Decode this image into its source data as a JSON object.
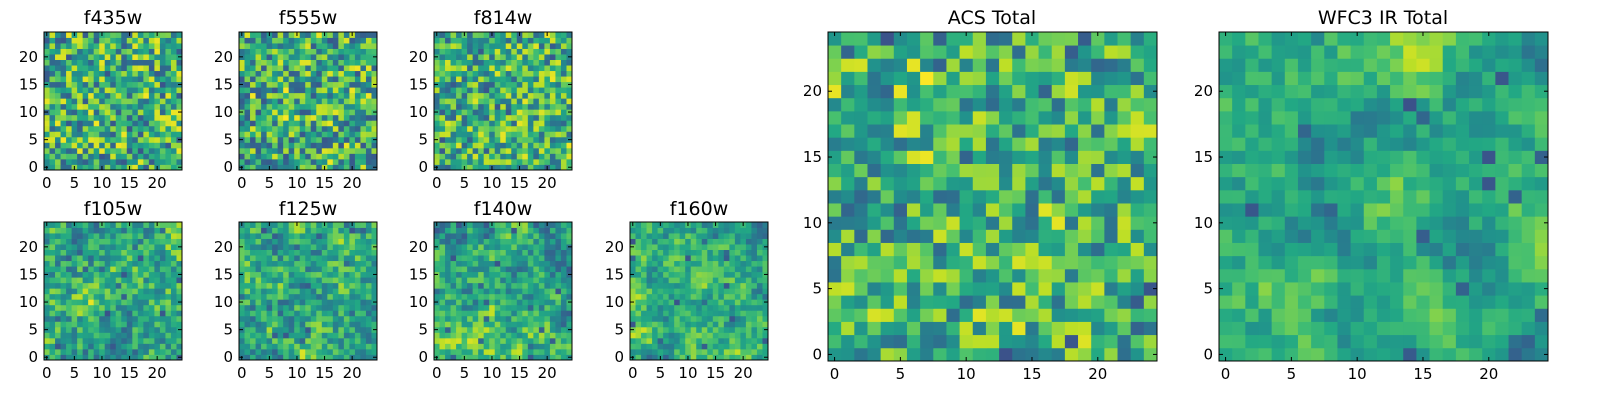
{
  "chart_data": [
    {
      "type": "heatmap",
      "title": "f435w",
      "seed": 11,
      "blob": 0.05,
      "noise": 0.95,
      "xticks": [
        "0",
        "5",
        "10",
        "15",
        "20"
      ],
      "yticks": [
        "0",
        "5",
        "10",
        "15",
        "20"
      ],
      "xlim": [
        0,
        24
      ],
      "ylim": [
        0,
        24
      ],
      "grid": false
    },
    {
      "type": "heatmap",
      "title": "f555w",
      "seed": 23,
      "blob": 0.05,
      "noise": 0.95,
      "xticks": [
        "0",
        "5",
        "10",
        "15",
        "20"
      ],
      "yticks": [
        "0",
        "5",
        "10",
        "15",
        "20"
      ],
      "xlim": [
        0,
        24
      ],
      "ylim": [
        0,
        24
      ],
      "grid": false
    },
    {
      "type": "heatmap",
      "title": "f814w",
      "seed": 37,
      "blob": 0.15,
      "noise": 0.85,
      "xticks": [
        "0",
        "5",
        "10",
        "15",
        "20"
      ],
      "yticks": [
        "0",
        "5",
        "10",
        "15",
        "20"
      ],
      "xlim": [
        0,
        24
      ],
      "ylim": [
        0,
        24
      ],
      "grid": false
    },
    {
      "type": "heatmap",
      "title": "f105w",
      "seed": 41,
      "blob": 0.45,
      "noise": 0.55,
      "xticks": [
        "0",
        "5",
        "10",
        "15",
        "20"
      ],
      "yticks": [
        "0",
        "5",
        "10",
        "15",
        "20"
      ],
      "xlim": [
        0,
        24
      ],
      "ylim": [
        0,
        24
      ],
      "grid": false
    },
    {
      "type": "heatmap",
      "title": "f125w",
      "seed": 53,
      "blob": 0.45,
      "noise": 0.55,
      "xticks": [
        "0",
        "5",
        "10",
        "15",
        "20"
      ],
      "yticks": [
        "0",
        "5",
        "10",
        "15",
        "20"
      ],
      "xlim": [
        0,
        24
      ],
      "ylim": [
        0,
        24
      ],
      "grid": false
    },
    {
      "type": "heatmap",
      "title": "f140w",
      "seed": 67,
      "blob": 0.55,
      "noise": 0.45,
      "xticks": [
        "0",
        "5",
        "10",
        "15",
        "20"
      ],
      "yticks": [
        "0",
        "5",
        "10",
        "15",
        "20"
      ],
      "xlim": [
        0,
        24
      ],
      "ylim": [
        0,
        24
      ],
      "grid": false
    },
    {
      "type": "heatmap",
      "title": "f160w",
      "seed": 79,
      "blob": 0.6,
      "noise": 0.4,
      "xticks": [
        "0",
        "5",
        "10",
        "15",
        "20"
      ],
      "yticks": [
        "0",
        "5",
        "10",
        "15",
        "20"
      ],
      "xlim": [
        0,
        24
      ],
      "ylim": [
        0,
        24
      ],
      "grid": false
    },
    {
      "type": "heatmap",
      "title": "ACS Total",
      "seed": 97,
      "blob": 0.2,
      "noise": 0.8,
      "xticks": [
        "0",
        "5",
        "10",
        "15",
        "20"
      ],
      "yticks": [
        "0",
        "5",
        "10",
        "15",
        "20"
      ],
      "xlim": [
        0,
        24
      ],
      "ylim": [
        0,
        24
      ],
      "grid": false
    },
    {
      "type": "heatmap",
      "title": "WFC3 IR Total",
      "seed": 131,
      "blob": 0.7,
      "noise": 0.3,
      "xticks": [
        "0",
        "5",
        "10",
        "15",
        "20"
      ],
      "yticks": [
        "0",
        "5",
        "10",
        "15",
        "20"
      ],
      "xlim": [
        0,
        24
      ],
      "ylim": [
        0,
        24
      ],
      "grid": false
    }
  ],
  "colormap": "viridis",
  "colors": {
    "low": "#440154",
    "mid": "#21918c",
    "high": "#fde725",
    "axis": "#000000"
  }
}
